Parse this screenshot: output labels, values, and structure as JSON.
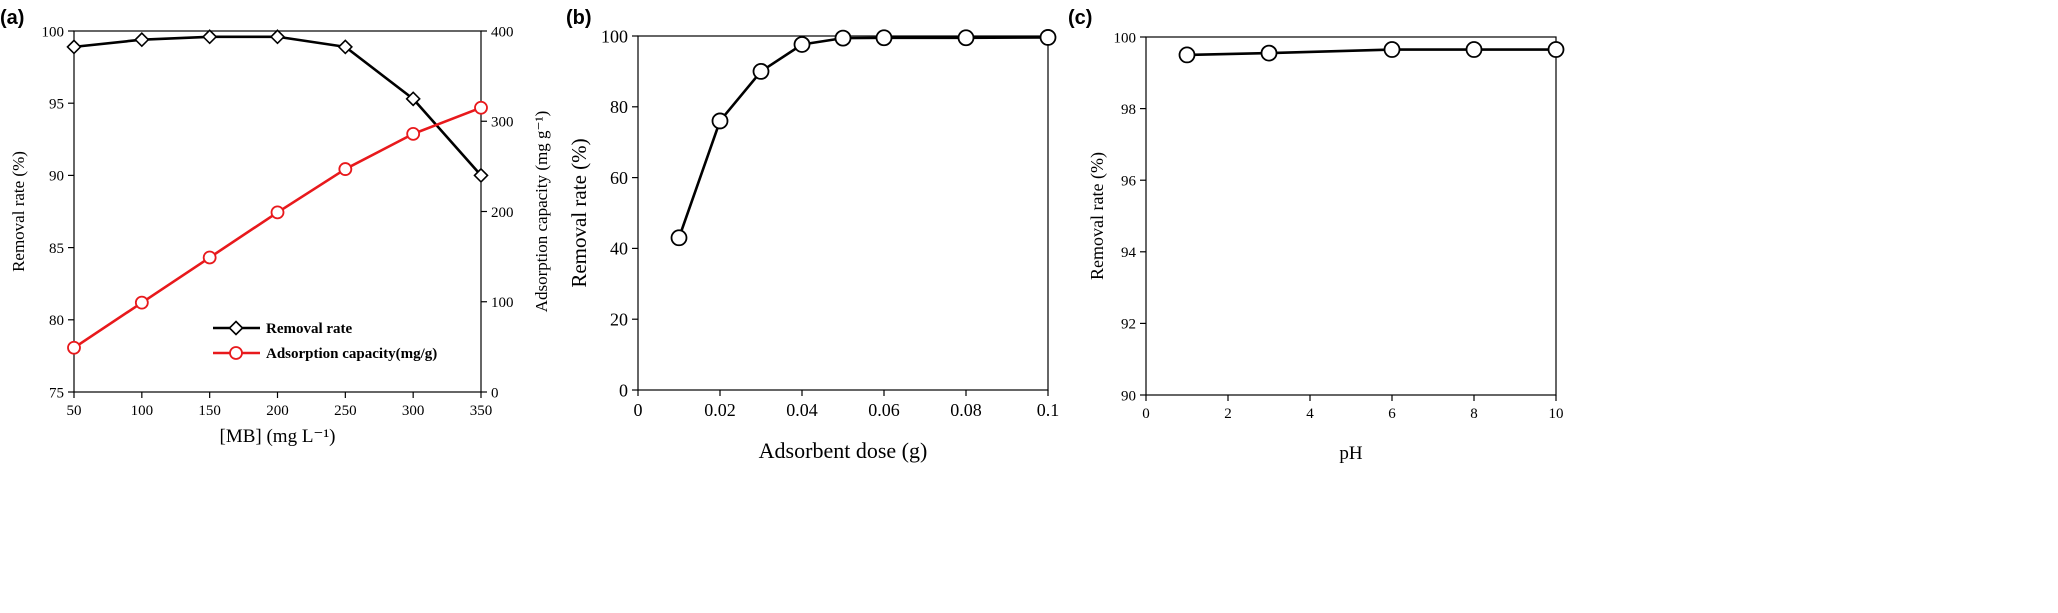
{
  "colors": {
    "black_series": "#000000",
    "red_series": "#e8191c",
    "axis": "#000000",
    "marker_fill": "#ffffff"
  },
  "chart_data": [
    {
      "panel_label": "(a)",
      "type": "line",
      "xlabel": "[MB] (mg L⁻¹)",
      "ylabel": "Removal rate (%)",
      "ylabel_right": "Adsorption capacity (mg g⁻¹)",
      "xlim": [
        50,
        350
      ],
      "xticks": [
        50,
        100,
        150,
        200,
        250,
        300,
        350
      ],
      "ylim": [
        75,
        100
      ],
      "yticks": [
        75,
        80,
        85,
        90,
        95,
        100
      ],
      "ylim_right": [
        0,
        400
      ],
      "yticks_right": [
        0,
        100,
        200,
        300,
        400
      ],
      "legend_position": "bottom-center",
      "x": [
        50,
        100,
        150,
        200,
        250,
        300,
        350
      ],
      "series": [
        {
          "name": "Removal rate",
          "axis": "left",
          "marker": "diamond",
          "color": "#000000",
          "values": [
            98.9,
            99.4,
            99.6,
            99.6,
            98.9,
            95.3,
            90.0
          ]
        },
        {
          "name": "Adsorption capacity(mg/g)",
          "axis": "right",
          "marker": "circle",
          "color": "#e8191c",
          "values": [
            49,
            99,
            149,
            199,
            247,
            286,
            315
          ]
        }
      ]
    },
    {
      "panel_label": "(b)",
      "type": "line",
      "xlabel": "Adsorbent dose (g)",
      "ylabel": "Removal rate (%)",
      "xlim": [
        0,
        0.1
      ],
      "xticks": [
        0,
        0.02,
        0.04,
        0.06,
        0.08,
        0.1
      ],
      "xtick_labels": [
        "0",
        "0.02",
        "0.04",
        "0.06",
        "0.08",
        "0.1"
      ],
      "ylim": [
        0,
        100
      ],
      "yticks": [
        0,
        20,
        40,
        60,
        80,
        100
      ],
      "x": [
        0.01,
        0.02,
        0.03,
        0.04,
        0.05,
        0.06,
        0.08,
        0.1
      ],
      "series": [
        {
          "marker": "circle",
          "color": "#000000",
          "values": [
            43.0,
            76.0,
            90.0,
            97.6,
            99.4,
            99.5,
            99.5,
            99.6
          ]
        }
      ]
    },
    {
      "panel_label": "(c)",
      "type": "line",
      "xlabel": "pH",
      "ylabel": "Removal rate (%)",
      "xlim": [
        0,
        10
      ],
      "xticks": [
        0,
        2,
        4,
        6,
        8,
        10
      ],
      "ylim": [
        90,
        100
      ],
      "yticks": [
        90,
        92,
        94,
        96,
        98,
        100
      ],
      "x": [
        1,
        3,
        6,
        8,
        10
      ],
      "series": [
        {
          "marker": "circle",
          "color": "#000000",
          "values": [
            99.5,
            99.55,
            99.65,
            99.65,
            99.65
          ]
        }
      ]
    }
  ]
}
